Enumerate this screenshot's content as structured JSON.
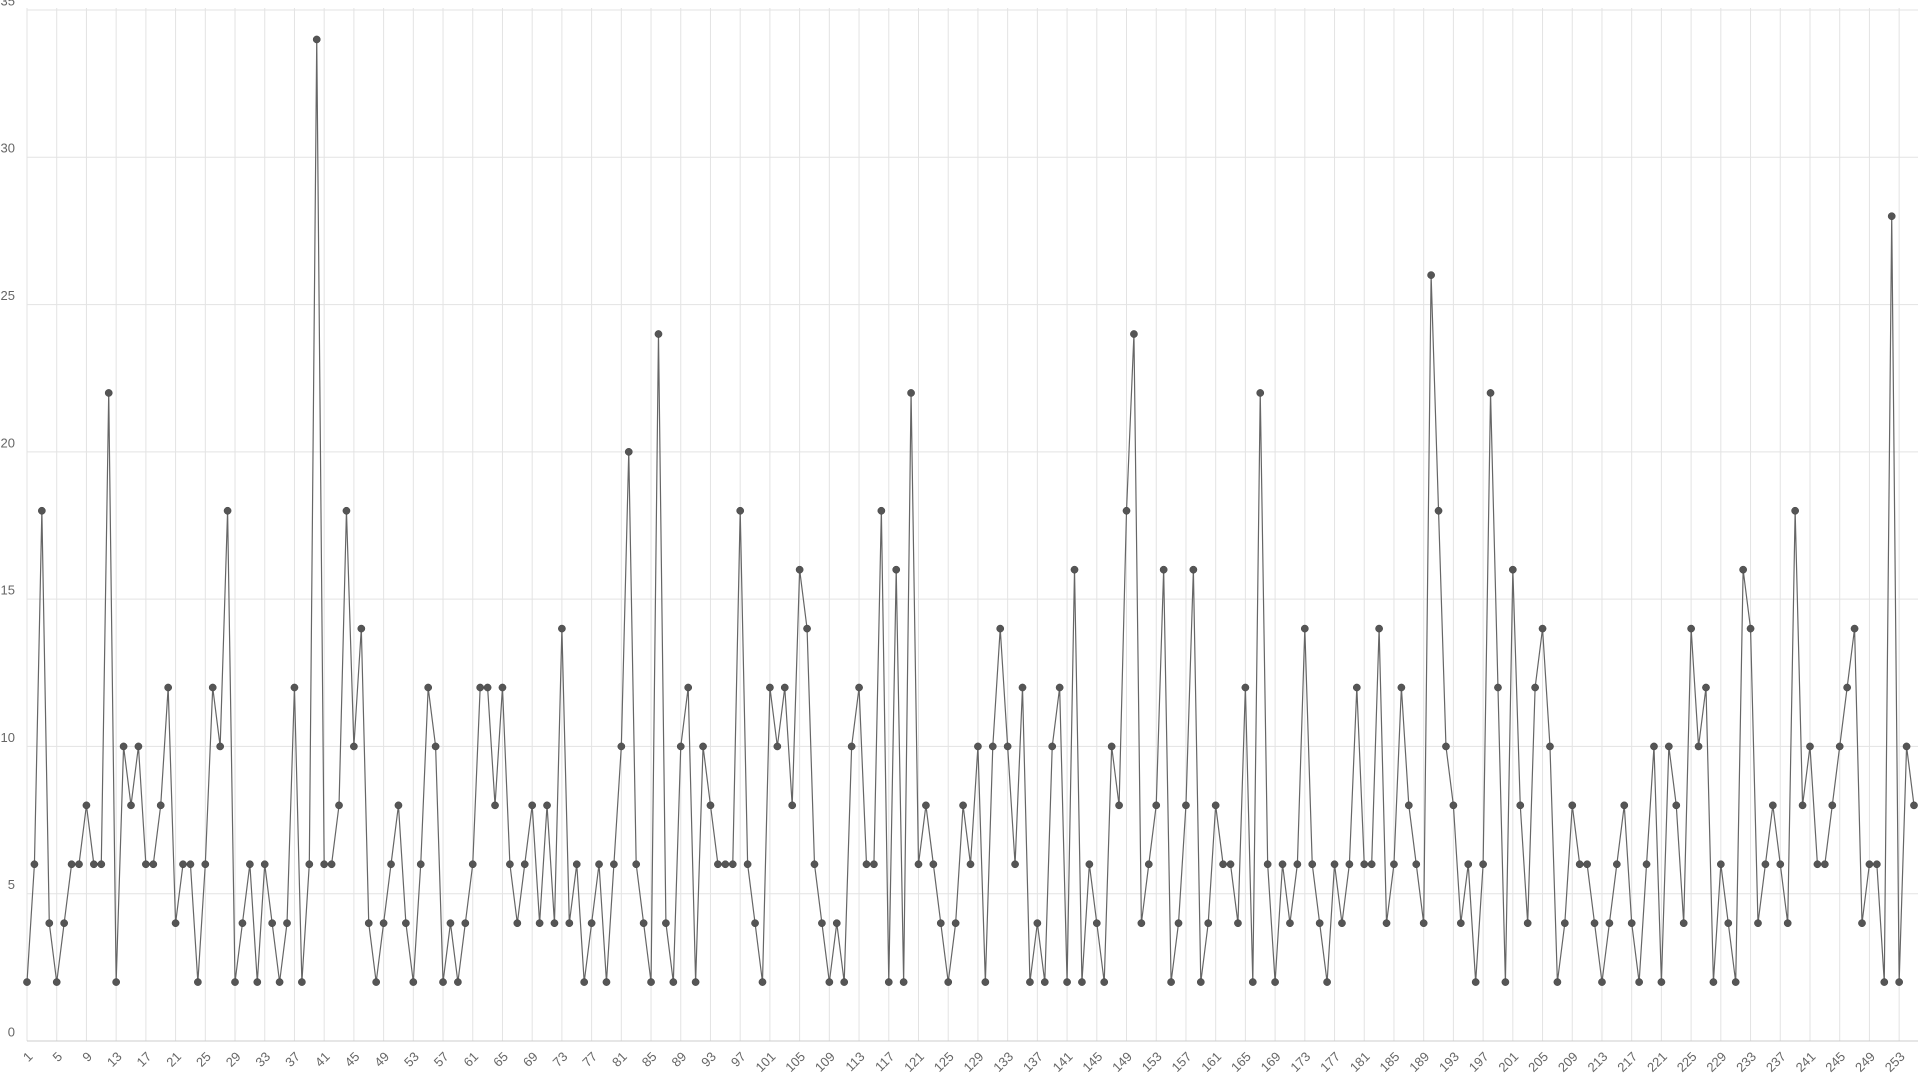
{
  "chart_data": {
    "type": "line",
    "categories": [
      1,
      null,
      null,
      null,
      5,
      null,
      null,
      null,
      9,
      null,
      null,
      null,
      13,
      null,
      null,
      null,
      17,
      null,
      null,
      null,
      21,
      null,
      null,
      null,
      25,
      null,
      null,
      null,
      29,
      null,
      null,
      null,
      33,
      null,
      null,
      null,
      37,
      null,
      null,
      null,
      41,
      null,
      null,
      null,
      45,
      null,
      null,
      null,
      49,
      null,
      null,
      null,
      53,
      null,
      null,
      null,
      57,
      null,
      null,
      null,
      61,
      null,
      null,
      null,
      65,
      null,
      null,
      null,
      69,
      null,
      null,
      null,
      73,
      null,
      null,
      null,
      77,
      null,
      null,
      null,
      81,
      null,
      null,
      null,
      85,
      null,
      null,
      null,
      89,
      null,
      null,
      null,
      93,
      null,
      null,
      null,
      97,
      null,
      null,
      null,
      101,
      null,
      null,
      null,
      105,
      null,
      null,
      null,
      109,
      null,
      null,
      null,
      113,
      null,
      null,
      null,
      117,
      null,
      null,
      null,
      121,
      null,
      null,
      null,
      125,
      null,
      null,
      null,
      129,
      null,
      null,
      null,
      133,
      null,
      null,
      null,
      137,
      null,
      null,
      null,
      141,
      null,
      null,
      null,
      145,
      null,
      null,
      null,
      149,
      null,
      null,
      null,
      153,
      null,
      null,
      null,
      157,
      null,
      null,
      null,
      161,
      null,
      null,
      null,
      165,
      null,
      null,
      null,
      169,
      null,
      null,
      null,
      173,
      null,
      null,
      null,
      177,
      null,
      null,
      null,
      181,
      null,
      null,
      null,
      185,
      null,
      null,
      null,
      189,
      null,
      null,
      null,
      193,
      null,
      null,
      null,
      197,
      null,
      null,
      null,
      201,
      null,
      null,
      null,
      205,
      null,
      null,
      null,
      209,
      null,
      null,
      null,
      213,
      null,
      null,
      null,
      217,
      null,
      null,
      null,
      221,
      null,
      null,
      null,
      225,
      null,
      null,
      null,
      229,
      null,
      null,
      null,
      233,
      null,
      null,
      null,
      237,
      null,
      null,
      null,
      241,
      null,
      null,
      null,
      245,
      null,
      null,
      null,
      249,
      null,
      null,
      null,
      253,
      null,
      null
    ],
    "values": [
      2,
      6,
      18,
      4,
      2,
      4,
      6,
      6,
      8,
      6,
      6,
      22,
      2,
      10,
      8,
      10,
      6,
      6,
      8,
      12,
      4,
      6,
      6,
      2,
      6,
      12,
      10,
      18,
      2,
      4,
      6,
      2,
      6,
      4,
      2,
      4,
      12,
      2,
      6,
      34,
      6,
      6,
      8,
      18,
      10,
      14,
      4,
      2,
      4,
      6,
      8,
      4,
      2,
      6,
      12,
      10,
      2,
      4,
      2,
      4,
      6,
      12,
      12,
      8,
      12,
      6,
      4,
      6,
      8,
      4,
      8,
      4,
      14,
      4,
      6,
      2,
      4,
      6,
      2,
      6,
      10,
      20,
      6,
      4,
      2,
      24,
      4,
      2,
      10,
      12,
      2,
      10,
      8,
      6,
      6,
      6,
      18,
      6,
      4,
      2,
      12,
      10,
      12,
      8,
      16,
      14,
      6,
      4,
      2,
      4,
      2,
      10,
      12,
      6,
      6,
      18,
      2,
      16,
      2,
      22,
      6,
      8,
      6,
      4,
      2,
      4,
      8,
      6,
      10,
      2,
      10,
      14,
      10,
      6,
      12,
      2,
      4,
      2,
      10,
      12,
      2,
      16,
      2,
      6,
      4,
      2,
      10,
      8,
      18,
      24,
      4,
      6,
      8,
      16,
      2,
      4,
      8,
      16,
      2,
      4,
      8,
      6,
      6,
      4,
      12,
      2,
      22,
      6,
      2,
      6,
      4,
      6,
      14,
      6,
      4,
      2,
      6,
      4,
      6,
      12,
      6,
      6,
      14,
      4,
      6,
      12,
      8,
      6,
      4,
      26,
      18,
      10,
      8,
      4,
      6,
      2,
      6,
      22,
      12,
      2,
      16,
      8,
      4,
      12,
      14,
      10,
      2,
      4,
      8,
      6,
      6,
      4,
      2,
      4,
      6,
      8,
      4,
      2,
      6,
      10,
      2,
      10,
      8,
      4,
      14,
      10,
      12,
      2,
      6,
      4,
      2,
      16,
      14,
      4,
      6,
      8,
      6,
      4,
      18,
      8,
      10,
      6,
      6,
      8,
      10,
      12,
      14,
      4,
      6,
      6,
      2,
      28,
      2,
      10,
      8
    ],
    "color": "#666666",
    "ylim": [
      0,
      35
    ],
    "yticks": [
      0,
      5,
      10,
      15,
      20,
      25,
      30,
      35
    ],
    "grid": true
  }
}
